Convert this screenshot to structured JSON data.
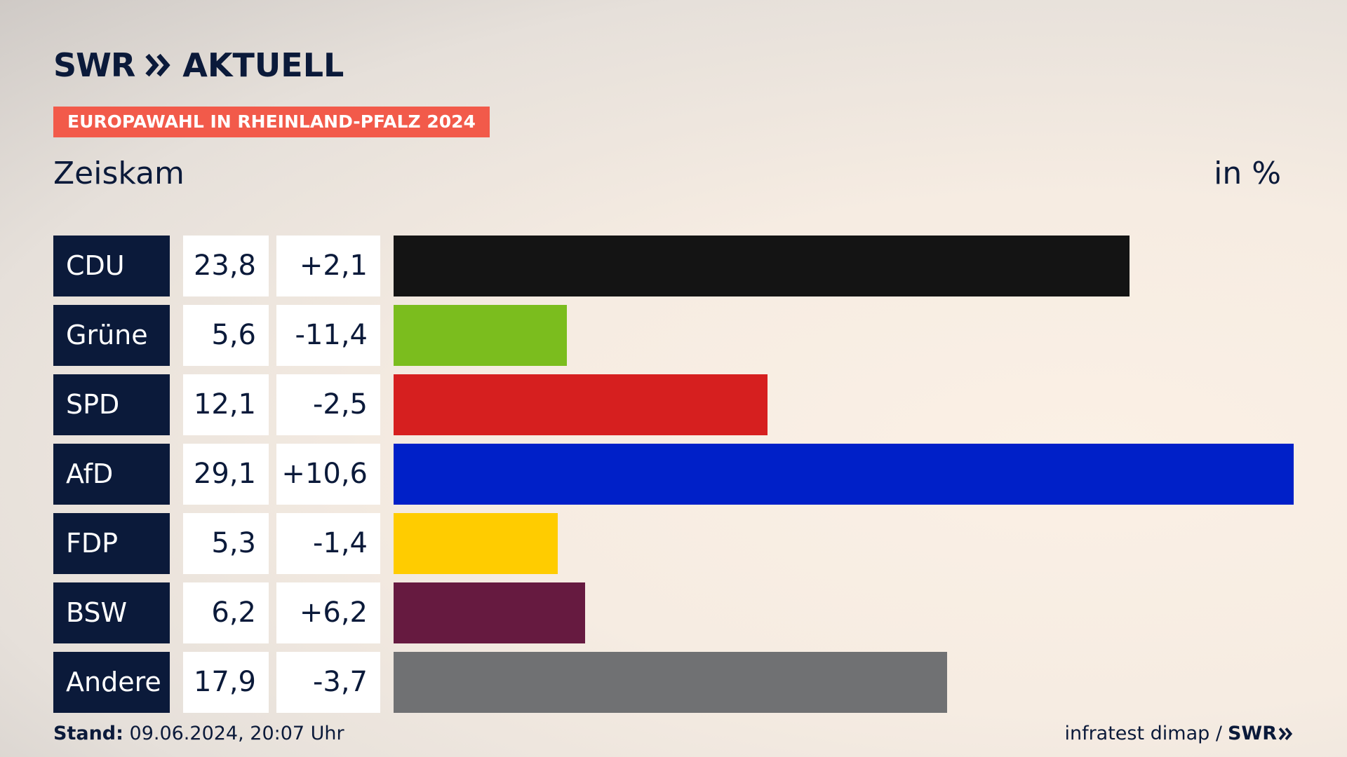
{
  "header": {
    "brand": "SWR",
    "brand_suffix": "AKTUELL",
    "tag": "EUROPAWAHL IN RHEINLAND-PFALZ 2024",
    "place": "Zeiskam",
    "unit": "in %"
  },
  "footer": {
    "stand_label": "Stand:",
    "stand_value": "09.06.2024, 20:07 Uhr",
    "source": "infratest dimap /",
    "source_brand": "SWR"
  },
  "colors": {
    "navy": "#0b1a3a",
    "tag": "#f25a4a"
  },
  "chart_data": {
    "type": "bar",
    "orientation": "horizontal",
    "categories": [
      "CDU",
      "Grüne",
      "SPD",
      "AfD",
      "FDP",
      "BSW",
      "Andere"
    ],
    "values": [
      23.8,
      5.6,
      12.1,
      29.1,
      5.3,
      6.2,
      17.9
    ],
    "value_labels": [
      "23,8",
      "5,6",
      "12,1",
      "29,1",
      "5,3",
      "6,2",
      "17,9"
    ],
    "changes": [
      2.1,
      -11.4,
      -2.5,
      10.6,
      -1.4,
      6.2,
      -3.7
    ],
    "change_labels": [
      "+2,1",
      "-11,4",
      "-2,5",
      "+10,6",
      "-1,4",
      "+6,2",
      "-3,7"
    ],
    "bar_colors": [
      "#141414",
      "#7bbd1e",
      "#d61f1f",
      "#0020c8",
      "#ffcc00",
      "#661a40",
      "#707173"
    ],
    "xlim": [
      0,
      29.1
    ],
    "grid": false,
    "legend": "none"
  }
}
